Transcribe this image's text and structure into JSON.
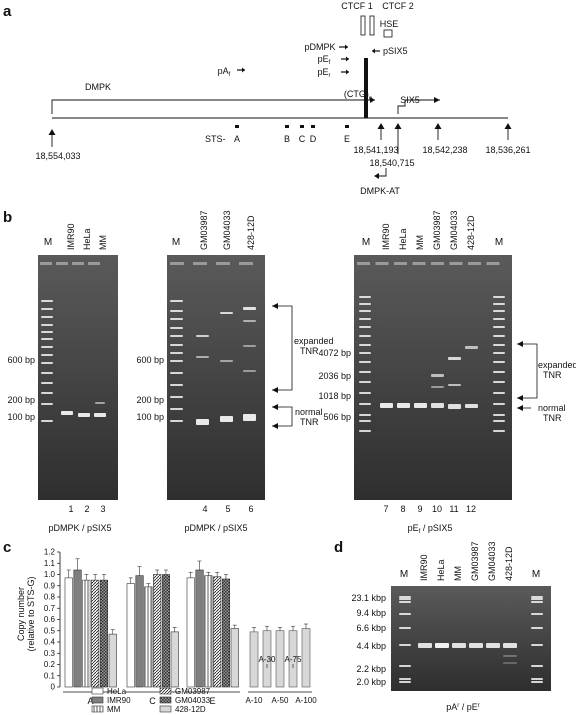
{
  "panel_a": {
    "label": "a",
    "ctcf1": "CTCF 1",
    "ctcf2": "CTCF 2",
    "hse": "HSE",
    "pdmpk": "pDMPK",
    "psix5": "pSIX5",
    "pef1": "pE",
    "pef1_sub": "f",
    "pef2": "pE",
    "pef2_sub": "r",
    "paf": "pA",
    "paf_sub": "f",
    "dmpk": "DMPK",
    "six5": "SIX5",
    "ctg": "(CTG)",
    "ctg_sub": "n",
    "sts_prefix": "STS-",
    "sts": [
      "A",
      "B",
      "C",
      "D",
      "E"
    ],
    "coords": [
      "18,554,033",
      "18,541,193",
      "18,540,715",
      "18,542,238",
      "18,536,261"
    ],
    "dmpk_at": "DMPK-AT"
  },
  "panel_b": {
    "label": "b",
    "M": "M",
    "gel1_lanes": [
      "IMR90",
      "HeLa",
      "MM"
    ],
    "gel1_nums": [
      "1",
      "2",
      "3"
    ],
    "gel1_sizes": [
      "600 bp",
      "200 bp",
      "100 bp"
    ],
    "gel1_caption": "pDMPK / pSIX5",
    "gel2_lanes": [
      "GM03987",
      "GM04033",
      "428-12D"
    ],
    "gel2_nums": [
      "4",
      "5",
      "6"
    ],
    "gel2_sizes": [
      "600 bp",
      "200 bp",
      "100 bp"
    ],
    "gel2_caption": "pDMPK / pSIX5",
    "gel3_lanes": [
      "IMR90",
      "HeLa",
      "MM",
      "GM03987",
      "GM04033",
      "428-12D"
    ],
    "gel3_nums": [
      "7",
      "8",
      "9",
      "10",
      "11",
      "12"
    ],
    "gel3_sizes": [
      "4072 bp",
      "2036 bp",
      "1018 bp",
      "506 bp"
    ],
    "gel3_caption_pre": "pE",
    "gel3_caption_sub": "f",
    "gel3_caption_post": " / pSIX5",
    "expanded": [
      "expanded",
      "TNR"
    ],
    "normal": [
      "normal",
      "TNR"
    ]
  },
  "panel_c": {
    "label": "c",
    "ylabel1": "Copy number",
    "ylabel2": "(relative to STS-G)",
    "ticks": [
      "1.2",
      "1.1",
      "1.0",
      "0.9",
      "0.8",
      "0.7",
      "0.6",
      "0.5",
      "0.4",
      "0.3",
      "0.2",
      "0.1",
      "0"
    ],
    "group_labels": [
      "A",
      "C",
      "E"
    ],
    "mix_labels_top": [
      "A-30",
      "A-75"
    ],
    "mix_labels_bottom": [
      "A-10",
      "A-50",
      "A-100"
    ],
    "legend": [
      "HeLa",
      "IMR90",
      "MM",
      "GM03987",
      "GM04033",
      "428-12D"
    ]
  },
  "chart_data": {
    "type": "bar",
    "title": "",
    "xlabel": "",
    "ylabel": "Copy number (relative to STS-G)",
    "ylim": [
      0,
      1.2
    ],
    "categories": [
      "A",
      "C",
      "E"
    ],
    "series": [
      {
        "name": "HeLa",
        "values": [
          0.97,
          0.92,
          0.97
        ],
        "errors": [
          0.07,
          0.05,
          0.05
        ]
      },
      {
        "name": "IMR90",
        "values": [
          1.04,
          0.99,
          1.04
        ],
        "errors": [
          0.1,
          0.08,
          0.08
        ]
      },
      {
        "name": "MM",
        "values": [
          0.95,
          0.89,
          0.99
        ],
        "errors": [
          0.05,
          0.03,
          0.03
        ]
      },
      {
        "name": "GM03987",
        "values": [
          0.95,
          1.0,
          0.98
        ],
        "errors": [
          0.05,
          0.04,
          0.04
        ]
      },
      {
        "name": "GM04033",
        "values": [
          0.95,
          1.0,
          0.96
        ],
        "errors": [
          0.05,
          0.04,
          0.04
        ]
      },
      {
        "name": "428-12D",
        "values": [
          0.47,
          0.49,
          0.52
        ],
        "errors": [
          0.04,
          0.04,
          0.03
        ]
      }
    ],
    "mixtures": {
      "categories": [
        "A-10",
        "A-30",
        "A-50",
        "A-75",
        "A-100"
      ],
      "values": [
        0.49,
        0.5,
        0.5,
        0.5,
        0.52
      ],
      "errors": [
        0.04,
        0.04,
        0.03,
        0.04,
        0.04
      ]
    },
    "legend_position": "bottom"
  },
  "panel_d": {
    "label": "d",
    "M": "M",
    "lanes": [
      "IMR90",
      "HeLa",
      "MM",
      "GM03987",
      "GM04033",
      "428-12D"
    ],
    "sizes": [
      "23.1 kbp",
      "9.4 kbp",
      "6.6 kbp",
      "4.4 kbp",
      "2.2 kbp",
      "2.0 kbp"
    ],
    "caption_a": "pA",
    "caption_a_sup": "r",
    "caption_sep": " / pE",
    "caption_e_sup": "r"
  },
  "colors": {
    "gel_bg": "#3a3a3a",
    "band": "#e8e8e8",
    "ink": "#111111"
  }
}
